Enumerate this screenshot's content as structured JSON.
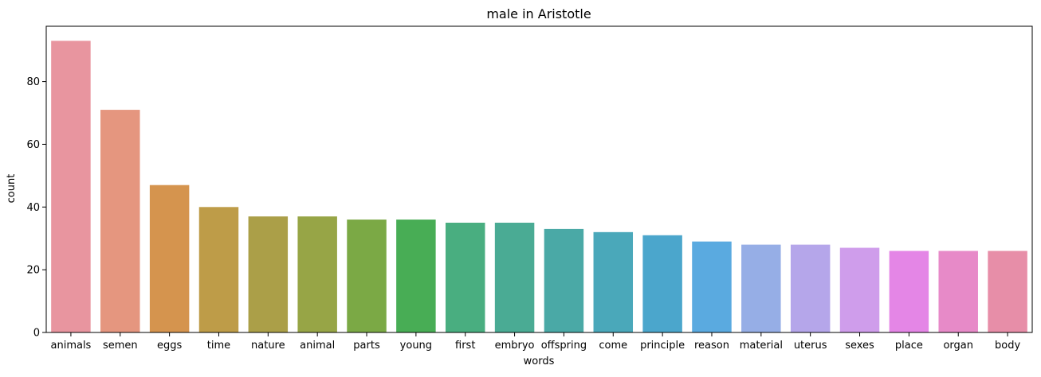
{
  "chart_data": {
    "type": "bar",
    "title": "male in Aristotle",
    "xlabel": "words",
    "ylabel": "count",
    "categories": [
      "animals",
      "semen",
      "eggs",
      "time",
      "nature",
      "animal",
      "parts",
      "young",
      "first",
      "embryo",
      "offspring",
      "come",
      "principle",
      "reason",
      "material",
      "uterus",
      "sexes",
      "place",
      "organ",
      "body"
    ],
    "values": [
      93,
      71,
      47,
      40,
      37,
      37,
      36,
      36,
      35,
      35,
      33,
      32,
      31,
      29,
      28,
      28,
      27,
      26,
      26,
      26
    ],
    "colors": [
      "#e8959f",
      "#e5967f",
      "#d5944e",
      "#be9c48",
      "#ab9f48",
      "#97a546",
      "#7ba945",
      "#48ad55",
      "#49ae80",
      "#4aab94",
      "#4aa9a6",
      "#4aa8ba",
      "#4ba6cc",
      "#5aaae0",
      "#96aee6",
      "#b5a6ea",
      "#cf9deb",
      "#e486e6",
      "#e78ac8",
      "#e78ea8"
    ],
    "ylim": [
      0,
      97.65
    ],
    "yticks": [
      0,
      20,
      40,
      60,
      80
    ],
    "grid": false,
    "legend": "none"
  }
}
